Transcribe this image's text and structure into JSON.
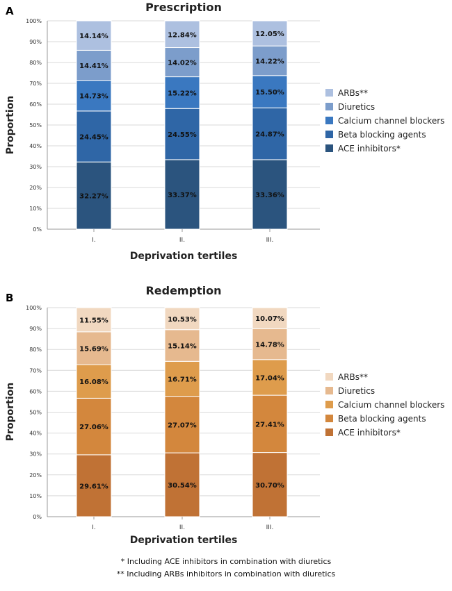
{
  "chart_data": [
    {
      "panel": "A",
      "type": "bar",
      "stacked": true,
      "title": "Prescription",
      "xlabel": "Deprivation tertiles",
      "ylabel": "Proportion",
      "ylim": [
        0,
        100
      ],
      "yticks": [
        "0%",
        "10%",
        "20%",
        "30%",
        "40%",
        "50%",
        "60%",
        "70%",
        "80%",
        "90%",
        "100%"
      ],
      "categories": [
        "I.",
        "II.",
        "III."
      ],
      "series": [
        {
          "name": "ACE inhibitors*",
          "color": "#2b547e",
          "values": [
            32.27,
            33.37,
            33.36
          ],
          "labels": [
            "32.27%",
            "33.37%",
            "33.36%"
          ]
        },
        {
          "name": "Beta blocking agents",
          "color": "#2f66a6",
          "values": [
            24.45,
            24.55,
            24.87
          ],
          "labels": [
            "24.45%",
            "24.55%",
            "24.87%"
          ]
        },
        {
          "name": "Calcium channel blockers",
          "color": "#3a78c0",
          "values": [
            14.73,
            15.22,
            15.5
          ],
          "labels": [
            "14.73%",
            "15.22%",
            "15.50%"
          ]
        },
        {
          "name": "Diuretics",
          "color": "#7c9dcb",
          "values": [
            14.41,
            14.02,
            14.22
          ],
          "labels": [
            "14.41%",
            "14.02%",
            "14.22%"
          ]
        },
        {
          "name": "ARBs**",
          "color": "#adc0e0",
          "values": [
            14.14,
            12.84,
            12.05
          ],
          "labels": [
            "14.14%",
            "12.84%",
            "12.05%"
          ]
        }
      ],
      "legend": "right"
    },
    {
      "panel": "B",
      "type": "bar",
      "stacked": true,
      "title": "Redemption",
      "xlabel": "Deprivation tertiles",
      "ylabel": "Proportion",
      "ylim": [
        0,
        100
      ],
      "yticks": [
        "0%",
        "10%",
        "20%",
        "30%",
        "40%",
        "50%",
        "60%",
        "70%",
        "80%",
        "90%",
        "100%"
      ],
      "categories": [
        "I.",
        "II.",
        "III."
      ],
      "series": [
        {
          "name": "ACE inhibitors*",
          "color": "#c07235",
          "values": [
            29.61,
            30.54,
            30.7
          ],
          "labels": [
            "29.61%",
            "30.54%",
            "30.70%"
          ]
        },
        {
          "name": "Beta blocking agents",
          "color": "#d3873d",
          "values": [
            27.06,
            27.07,
            27.41
          ],
          "labels": [
            "27.06%",
            "27.07%",
            "27.41%"
          ]
        },
        {
          "name": "Calcium channel blockers",
          "color": "#de9c4c",
          "values": [
            16.08,
            16.71,
            17.04
          ],
          "labels": [
            "16.08%",
            "16.71%",
            "17.04%"
          ]
        },
        {
          "name": "Diuretics",
          "color": "#e6b98f",
          "values": [
            15.69,
            15.14,
            14.78
          ],
          "labels": [
            "15.69%",
            "15.14%",
            "14.78%"
          ]
        },
        {
          "name": "ARBs**",
          "color": "#f1d8c0",
          "values": [
            11.55,
            10.53,
            10.07
          ],
          "labels": [
            "11.55%",
            "10.53%",
            "10.07%"
          ]
        }
      ],
      "legend": "right"
    }
  ],
  "footnotes": {
    "line1": "* Including ACE inhibitors in combination with diuretics",
    "line2": "** Including ARBs inhibitors in combination with diuretics"
  }
}
